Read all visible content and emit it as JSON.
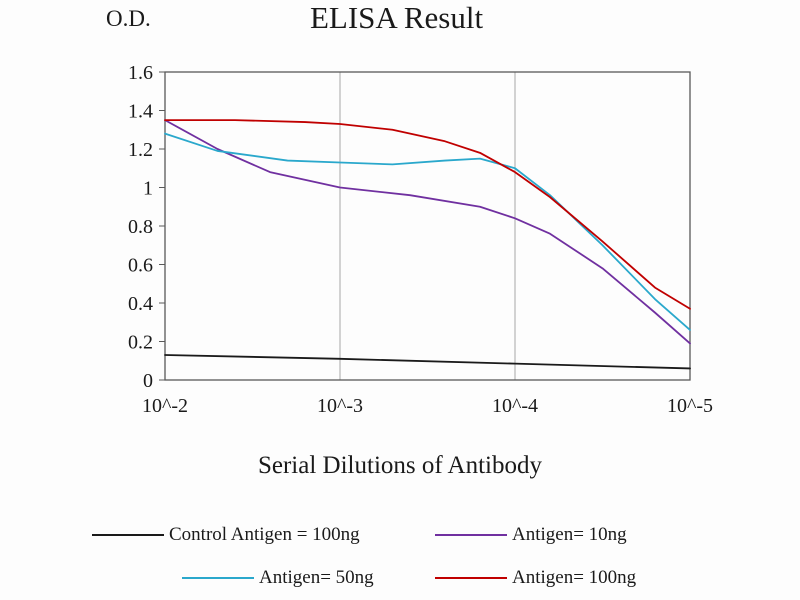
{
  "chart_data": {
    "type": "line",
    "title": "ELISA Result",
    "ylabel": "O.D.",
    "xlabel": "Serial Dilutions of Antibody",
    "x_ticks": [
      "10^-2",
      "10^-3",
      "10^-4",
      "10^-5"
    ],
    "y_ticks": [
      "0",
      "0.2",
      "0.4",
      "0.6",
      "0.8",
      "1",
      "1.2",
      "1.4",
      "1.6"
    ],
    "ylim": [
      0,
      1.6
    ],
    "grid": "vertical-only",
    "legend_position": "bottom",
    "colors": {
      "axis": "#595959",
      "grid": "#a6a6a6",
      "text": "#1a1a1a"
    },
    "series": [
      {
        "name": "Control Antigen = 100ng",
        "color": "#1a1a1a",
        "x": [
          0,
          1,
          2,
          3
        ],
        "y": [
          0.13,
          0.11,
          0.085,
          0.06
        ]
      },
      {
        "name": "Antigen= 10ng",
        "color": "#7030a0",
        "x": [
          0,
          0.3,
          0.6,
          1.0,
          1.4,
          1.8,
          2.0,
          2.2,
          2.5,
          2.8,
          3.0
        ],
        "y": [
          1.35,
          1.2,
          1.08,
          1.0,
          0.96,
          0.9,
          0.84,
          0.76,
          0.58,
          0.35,
          0.19
        ]
      },
      {
        "name": "Antigen= 50ng",
        "color": "#2aa8cc",
        "x": [
          0,
          0.3,
          0.7,
          1.0,
          1.3,
          1.6,
          1.8,
          2.0,
          2.2,
          2.5,
          2.8,
          3.0
        ],
        "y": [
          1.28,
          1.19,
          1.14,
          1.13,
          1.12,
          1.14,
          1.15,
          1.1,
          0.96,
          0.7,
          0.42,
          0.26
        ]
      },
      {
        "name": "Antigen= 100ng",
        "color": "#c00000",
        "x": [
          0,
          0.4,
          0.8,
          1.0,
          1.3,
          1.6,
          1.8,
          2.0,
          2.2,
          2.5,
          2.8,
          3.0
        ],
        "y": [
          1.35,
          1.35,
          1.34,
          1.33,
          1.3,
          1.24,
          1.18,
          1.08,
          0.95,
          0.72,
          0.48,
          0.37
        ]
      }
    ]
  }
}
